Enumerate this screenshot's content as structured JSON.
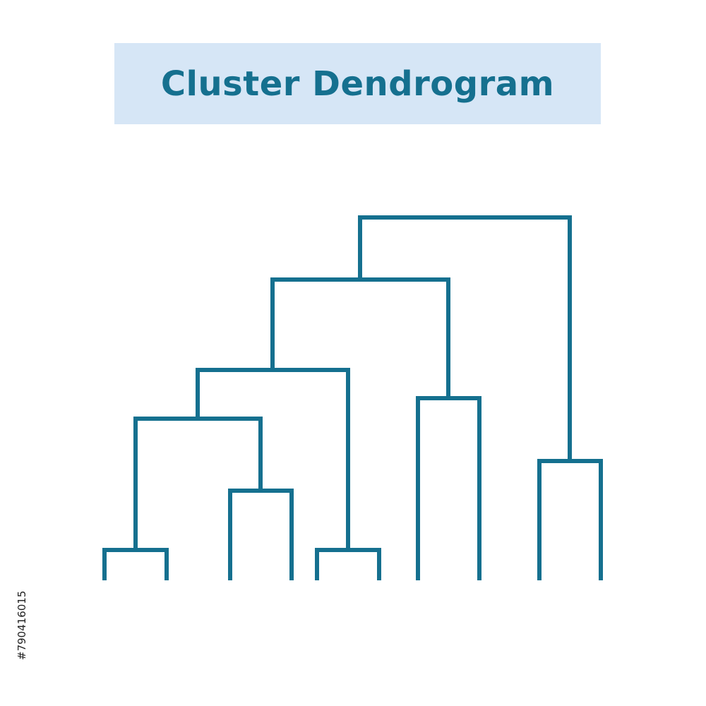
{
  "title": "Cluster Dendrogram",
  "colors": {
    "banner_background": "#d6e6f6",
    "title_text": "#15708f",
    "tree_stroke": "#15708f",
    "background": "#ffffff"
  },
  "dendrogram": {
    "leaf_count": 10,
    "clusters": [
      {
        "name": "leaf-pair-1",
        "leaves": [
          1,
          2
        ]
      },
      {
        "name": "leaf-pair-2",
        "leaves": [
          3,
          4
        ]
      },
      {
        "name": "leaf-pair-3",
        "leaves": [
          5,
          6
        ]
      },
      {
        "name": "leaf-pair-4",
        "leaves": [
          7,
          8
        ]
      },
      {
        "name": "leaf-pair-5",
        "leaves": [
          9,
          10
        ]
      },
      {
        "name": "merge-pairs-1-2",
        "children": [
          "leaf-pair-1",
          "leaf-pair-2"
        ]
      },
      {
        "name": "merge-with-pair-3",
        "children": [
          "merge-pairs-1-2",
          "leaf-pair-3"
        ]
      },
      {
        "name": "merge-with-pair-4",
        "children": [
          "merge-with-pair-3",
          "leaf-pair-4"
        ]
      },
      {
        "name": "root-merge",
        "children": [
          "merge-with-pair-4",
          "leaf-pair-5"
        ]
      }
    ]
  },
  "watermark": {
    "image_id": "#790416015"
  }
}
